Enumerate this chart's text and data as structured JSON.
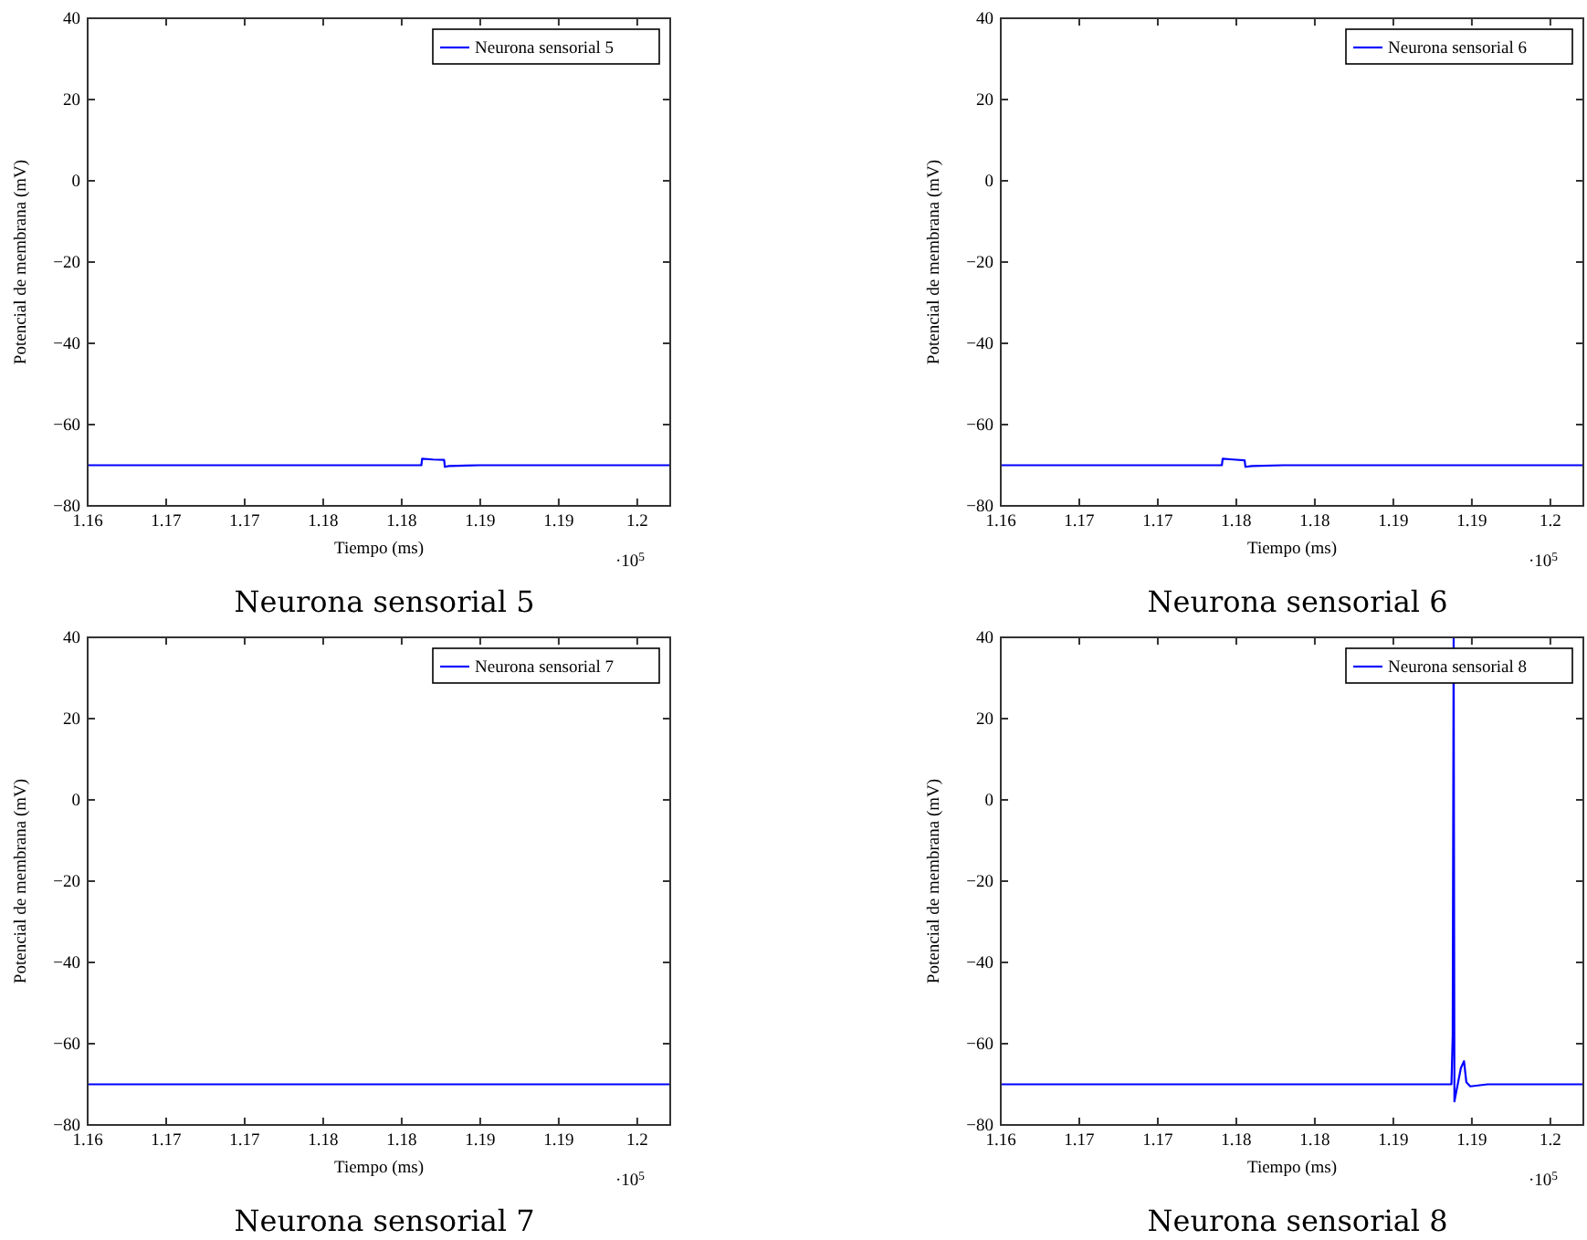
{
  "chart_data": [
    {
      "type": "line",
      "title": "Neurona sensorial 5",
      "xlabel": "Tiempo (ms)",
      "ylabel": "Potencial de membrana (mV)",
      "annotations": [
        "·10$^{5}$"
      ],
      "xlim": [
        1.16,
        1.1971
      ],
      "ylim": [
        -80,
        40
      ],
      "xticks": [
        {
          "value": 1.16,
          "label": "1.16"
        },
        {
          "value": 1.165,
          "label": "1.17"
        },
        {
          "value": 1.17,
          "label": "1.17"
        },
        {
          "value": 1.175,
          "label": "1.18"
        },
        {
          "value": 1.18,
          "label": "1.18"
        },
        {
          "value": 1.185,
          "label": "1.19"
        },
        {
          "value": 1.19,
          "label": "1.19"
        },
        {
          "value": 1.195,
          "label": "1.2"
        }
      ],
      "yticks": [
        -80,
        -60,
        -40,
        -20,
        0,
        20,
        40
      ],
      "legend": "top right",
      "grid": false,
      "series": [
        {
          "name": "Neurona sensorial 5",
          "color": "#0000ff",
          "x": [
            1.16,
            1.18125,
            1.1813,
            1.182,
            1.1827,
            1.18275,
            1.183,
            1.185,
            1.1971
          ],
          "values": [
            -70,
            -70,
            -68.4,
            -68.6,
            -68.7,
            -70.4,
            -70.2,
            -70,
            -70
          ]
        }
      ]
    },
    {
      "type": "line",
      "title": "Neurona sensorial 6",
      "xlabel": "Tiempo (ms)",
      "ylabel": "Potencial de membrana (mV)",
      "annotations": [
        "·10$^{5}$"
      ],
      "xlim": [
        1.16,
        1.1971
      ],
      "ylim": [
        -80,
        40
      ],
      "xticks": [
        {
          "value": 1.16,
          "label": "1.16"
        },
        {
          "value": 1.165,
          "label": "1.17"
        },
        {
          "value": 1.17,
          "label": "1.17"
        },
        {
          "value": 1.175,
          "label": "1.18"
        },
        {
          "value": 1.18,
          "label": "1.18"
        },
        {
          "value": 1.185,
          "label": "1.19"
        },
        {
          "value": 1.19,
          "label": "1.19"
        },
        {
          "value": 1.195,
          "label": "1.2"
        }
      ],
      "yticks": [
        -80,
        -60,
        -40,
        -20,
        0,
        20,
        40
      ],
      "legend": "top right",
      "grid": false,
      "series": [
        {
          "name": "Neurona sensorial 6",
          "color": "#0000ff",
          "x": [
            1.16,
            1.17408,
            1.17413,
            1.1748,
            1.17553,
            1.17558,
            1.176,
            1.178,
            1.1971
          ],
          "values": [
            -70,
            -70,
            -68.4,
            -68.6,
            -68.8,
            -70.4,
            -70.2,
            -70,
            -70
          ]
        }
      ]
    },
    {
      "type": "line",
      "title": "Neurona sensorial 7",
      "xlabel": "Tiempo (ms)",
      "ylabel": "Potencial de membrana (mV)",
      "annotations": [
        "·10$^{5}$"
      ],
      "xlim": [
        1.16,
        1.1971
      ],
      "ylim": [
        -80,
        40
      ],
      "xticks": [
        {
          "value": 1.16,
          "label": "1.16"
        },
        {
          "value": 1.165,
          "label": "1.17"
        },
        {
          "value": 1.17,
          "label": "1.17"
        },
        {
          "value": 1.175,
          "label": "1.18"
        },
        {
          "value": 1.18,
          "label": "1.18"
        },
        {
          "value": 1.185,
          "label": "1.19"
        },
        {
          "value": 1.19,
          "label": "1.19"
        },
        {
          "value": 1.195,
          "label": "1.2"
        }
      ],
      "yticks": [
        -80,
        -60,
        -40,
        -20,
        0,
        20,
        40
      ],
      "legend": "top right",
      "grid": false,
      "series": [
        {
          "name": "Neurona sensorial 7",
          "color": "#0000ff",
          "x": [
            1.16,
            1.1971
          ],
          "values": [
            -70,
            -70
          ]
        }
      ]
    },
    {
      "type": "line",
      "title": "Neurona sensorial 8",
      "xlabel": "Tiempo (ms)",
      "ylabel": "Potencial de membrana (mV)",
      "annotations": [
        "·10$^{5}$"
      ],
      "xlim": [
        1.16,
        1.1971
      ],
      "ylim": [
        -80,
        40
      ],
      "xticks": [
        {
          "value": 1.16,
          "label": "1.16"
        },
        {
          "value": 1.165,
          "label": "1.17"
        },
        {
          "value": 1.17,
          "label": "1.17"
        },
        {
          "value": 1.175,
          "label": "1.18"
        },
        {
          "value": 1.18,
          "label": "1.18"
        },
        {
          "value": 1.185,
          "label": "1.19"
        },
        {
          "value": 1.19,
          "label": "1.19"
        },
        {
          "value": 1.195,
          "label": "1.2"
        }
      ],
      "yticks": [
        -80,
        -60,
        -40,
        -20,
        0,
        20,
        40
      ],
      "legend": "top right",
      "grid": false,
      "series": [
        {
          "name": "Neurona sensorial 8",
          "color": "#0000ff",
          "x": [
            1.16,
            1.1887,
            1.18878,
            1.18884,
            1.18889,
            1.189,
            1.1893,
            1.1895,
            1.18965,
            1.1899,
            1.191,
            1.1971
          ],
          "values": [
            -70,
            -70,
            -58,
            40,
            -74.2,
            -72,
            -66,
            -64.3,
            -69.5,
            -70.5,
            -70,
            -70
          ]
        }
      ]
    }
  ]
}
